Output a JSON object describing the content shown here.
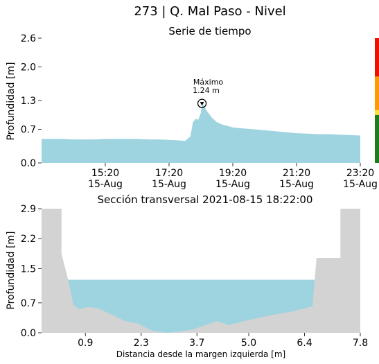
{
  "title": "273 | Q. Mal Paso - Nivel",
  "chart_data": [
    {
      "type": "area",
      "title": "Serie de tiempo",
      "ylabel": "Profundidad [m]",
      "xlabel": "",
      "ylim": [
        0.0,
        2.6
      ],
      "yticks": [
        "0.0",
        "0.7",
        "1.3",
        "2.0",
        "2.6"
      ],
      "xticks": [
        {
          "time": "15:20",
          "date": "15-Aug"
        },
        {
          "time": "17:20",
          "date": "15-Aug"
        },
        {
          "time": "19:20",
          "date": "15-Aug"
        },
        {
          "time": "21:20",
          "date": "15-Aug"
        },
        {
          "time": "23:20",
          "date": "15-Aug"
        }
      ],
      "xlim": [
        "2021-08-15 13:20",
        "2021-08-15 23:20"
      ],
      "fill_color": "#9ed3e0",
      "series": [
        {
          "x": [
            "13:20",
            "13:40",
            "14:00",
            "14:20",
            "14:40",
            "15:00",
            "15:20",
            "15:40",
            "16:00",
            "16:20",
            "16:40",
            "17:00",
            "17:20",
            "17:40",
            "17:50",
            "18:00",
            "18:05",
            "18:10",
            "18:15",
            "18:20",
            "18:22",
            "18:25",
            "18:30",
            "18:40",
            "18:50",
            "19:00",
            "19:20",
            "19:40",
            "20:00",
            "20:20",
            "20:40",
            "21:00",
            "21:20",
            "21:40",
            "22:00",
            "22:20",
            "22:40",
            "23:00",
            "23:20"
          ],
          "y": [
            0.5,
            0.5,
            0.5,
            0.49,
            0.49,
            0.49,
            0.5,
            0.5,
            0.5,
            0.5,
            0.49,
            0.49,
            0.48,
            0.47,
            0.46,
            0.55,
            0.85,
            0.92,
            0.9,
            1.05,
            1.24,
            1.2,
            1.1,
            0.95,
            0.85,
            0.8,
            0.74,
            0.72,
            0.7,
            0.68,
            0.66,
            0.64,
            0.62,
            0.61,
            0.6,
            0.6,
            0.59,
            0.58,
            0.57
          ]
        }
      ],
      "annotation": {
        "label": "Máximo",
        "value": "1.24 m",
        "x": "18:22",
        "y": 1.24
      },
      "level_bar": {
        "segments": [
          {
            "from": 0.0,
            "to": 1.0,
            "color": "#1a7f1a"
          },
          {
            "from": 1.0,
            "to": 1.1,
            "color": "#ffe23a"
          },
          {
            "from": 1.1,
            "to": 1.8,
            "color": "#ff9900"
          },
          {
            "from": 1.8,
            "to": 2.6,
            "color": "#ee1100"
          }
        ]
      }
    },
    {
      "type": "area",
      "title": "Sección transversal 2021-08-15 18:22:00",
      "xlabel": "Distancia desde la margen izquierda [m]",
      "ylabel": "Profundidad [m]",
      "xlim": [
        -0.2,
        7.8
      ],
      "ylim": [
        0.0,
        2.9
      ],
      "xticks": [
        "0.9",
        "2.3",
        "3.7",
        "5.0",
        "6.4",
        "7.8"
      ],
      "yticks": [
        "0.0",
        "0.7",
        "1.5",
        "2.2",
        "2.9"
      ],
      "water_level": 1.24,
      "water_color": "#9ed3e0",
      "bed_color": "#d3d3d3",
      "bed_profile": {
        "x": [
          -0.2,
          0.3,
          0.3,
          0.45,
          0.6,
          0.75,
          0.95,
          1.2,
          1.5,
          1.9,
          2.2,
          2.6,
          2.9,
          3.2,
          3.6,
          4.2,
          4.5,
          5.0,
          5.5,
          6.1,
          6.6,
          6.7,
          7.3,
          7.3,
          7.8
        ],
        "y": [
          2.9,
          2.9,
          1.85,
          1.3,
          0.65,
          0.55,
          0.6,
          0.58,
          0.45,
          0.27,
          0.22,
          0.04,
          0.0,
          0.02,
          0.08,
          0.27,
          0.18,
          0.3,
          0.4,
          0.5,
          0.62,
          1.75,
          1.75,
          2.9,
          2.9
        ]
      }
    }
  ]
}
